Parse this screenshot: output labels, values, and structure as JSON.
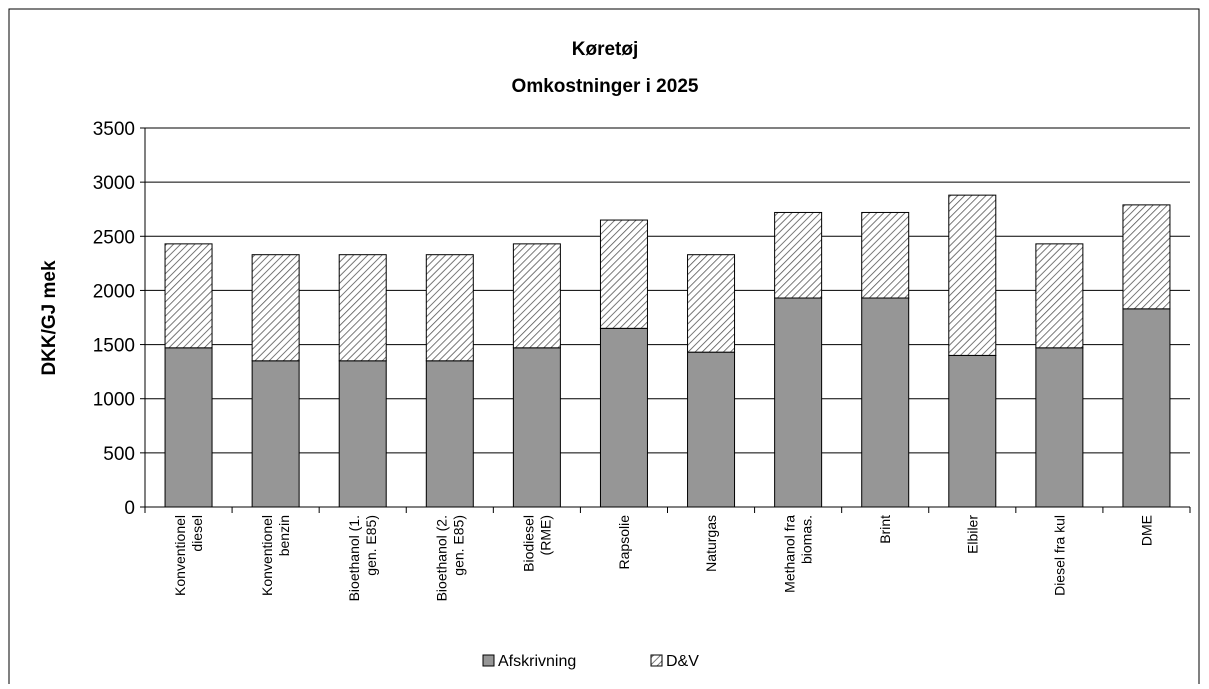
{
  "chart_data": {
    "type": "stacked_bar",
    "title": "Køretøj",
    "subtitle": "Omkostninger i 2025",
    "ylabel": "DKK/GJ mek",
    "categories": [
      "Konventionel\ndiesel",
      "Konventionel\nbenzin",
      "Bioethanol (1.\ngen. E85)",
      "Bioethanol (2.\ngen. E85)",
      "Biodiesel\n(RME)",
      "Rapsolie",
      "Naturgas",
      "Methanol fra\nbiomas.",
      "Brint",
      "Elbiler",
      "Diesel fra kul",
      "DME"
    ],
    "series": [
      {
        "name": "Afskrivning",
        "color": "#969696",
        "values": [
          1470,
          1350,
          1350,
          1350,
          1470,
          1650,
          1430,
          1930,
          1930,
          1400,
          1470,
          1830
        ]
      },
      {
        "name": "D&V",
        "color": "hatch",
        "values": [
          960,
          980,
          980,
          980,
          960,
          1000,
          900,
          790,
          790,
          1480,
          960,
          960
        ]
      }
    ],
    "ylim": [
      0,
      3500
    ],
    "yticks": [
      0,
      500,
      1000,
      1500,
      2000,
      2500,
      3000,
      3500
    ],
    "grid": true,
    "legend": "bottom"
  }
}
